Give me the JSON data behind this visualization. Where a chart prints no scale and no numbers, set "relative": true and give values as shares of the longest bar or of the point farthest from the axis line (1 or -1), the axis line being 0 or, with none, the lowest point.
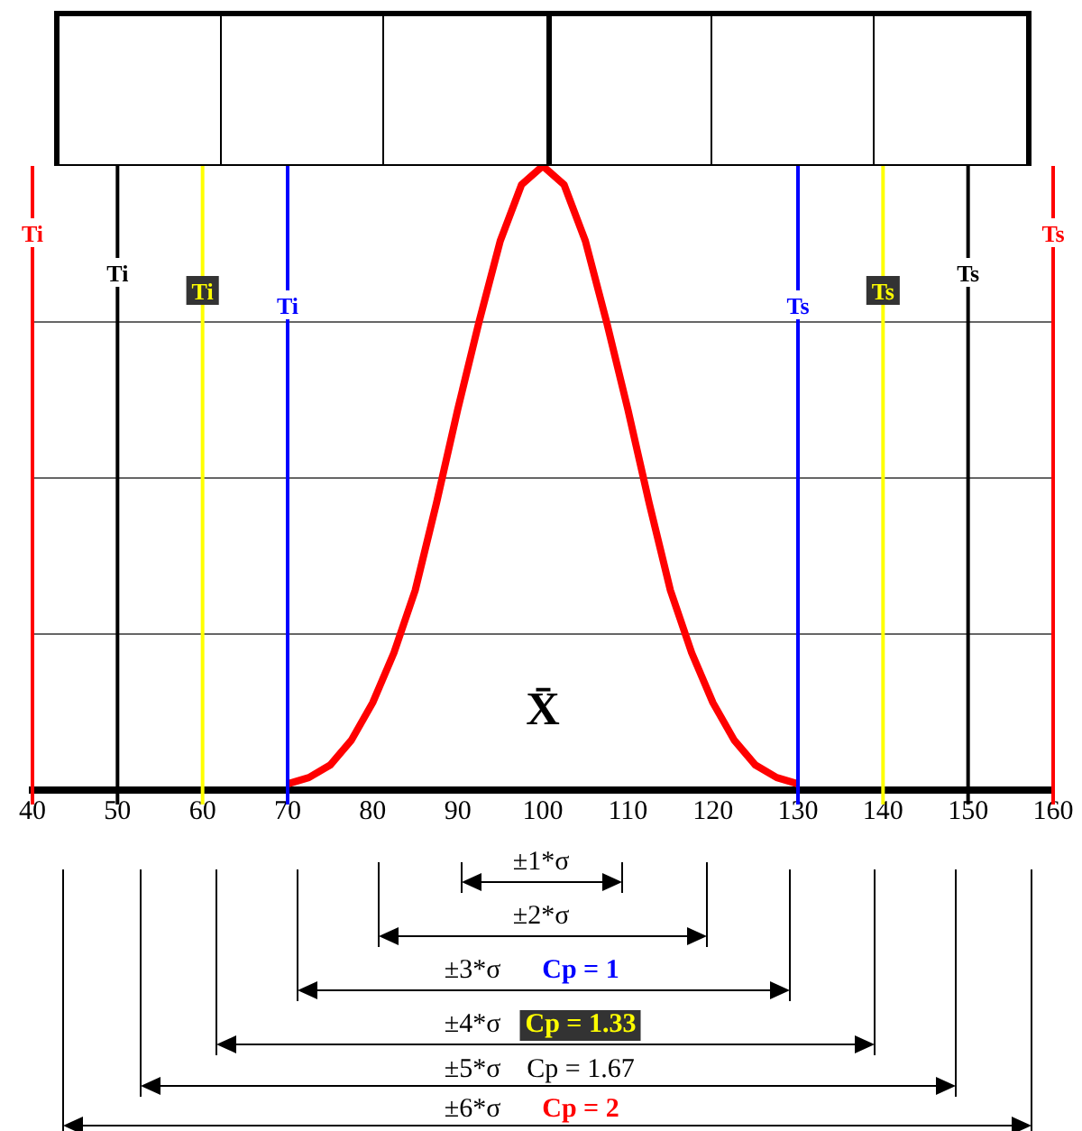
{
  "chart_data": {
    "type": "line",
    "relative": true,
    "grid": "y",
    "legend": false,
    "marker": "none",
    "line_style": "solid",
    "x": [
      70,
      72.5,
      75,
      77.5,
      80,
      82.5,
      85,
      87.5,
      90,
      92.5,
      95,
      97.5,
      100,
      102.5,
      105,
      107.5,
      110,
      112.5,
      115,
      117.5,
      120,
      122.5,
      125,
      127.5,
      130
    ],
    "series": [
      {
        "color": "#ff0000",
        "values": [
          0.01,
          0.02,
          0.04,
          0.08,
          0.14,
          0.22,
          0.32,
          0.46,
          0.61,
          0.75,
          0.88,
          0.97,
          1,
          0.97,
          0.88,
          0.75,
          0.61,
          0.46,
          0.32,
          0.22,
          0.14,
          0.08,
          0.04,
          0.02,
          0.01
        ]
      }
    ],
    "xlim": [
      40,
      160
    ],
    "xticks": [
      40,
      50,
      60,
      70,
      80,
      90,
      100,
      110,
      120,
      130,
      140,
      150,
      160
    ],
    "ref_lines": [
      {
        "axis": "x",
        "value": 40,
        "label": "Ti",
        "color": "#ff0000"
      },
      {
        "axis": "x",
        "value": 50,
        "label": "Ti",
        "color": "#000000"
      },
      {
        "axis": "x",
        "value": 60,
        "label": "Ti",
        "color": "#ffff00"
      },
      {
        "axis": "x",
        "value": 70,
        "label": "Ti",
        "color": "#0000ff"
      },
      {
        "axis": "x",
        "value": 130,
        "label": "Ts",
        "color": "#0000ff"
      },
      {
        "axis": "x",
        "value": 140,
        "label": "Ts",
        "color": "#ffff00"
      },
      {
        "axis": "x",
        "value": 150,
        "label": "Ts",
        "color": "#000000"
      },
      {
        "axis": "x",
        "value": 160,
        "label": "Ts",
        "color": "#ff0000"
      }
    ],
    "annotations": [
      "X̄",
      "±1*σ",
      "±2*σ",
      "±3*σ",
      "±4*σ",
      "±5*σ",
      "±6*σ",
      "Cp = 1",
      "Cp = 1.33",
      "Cp = 1.67",
      "Cp = 2"
    ]
  }
}
